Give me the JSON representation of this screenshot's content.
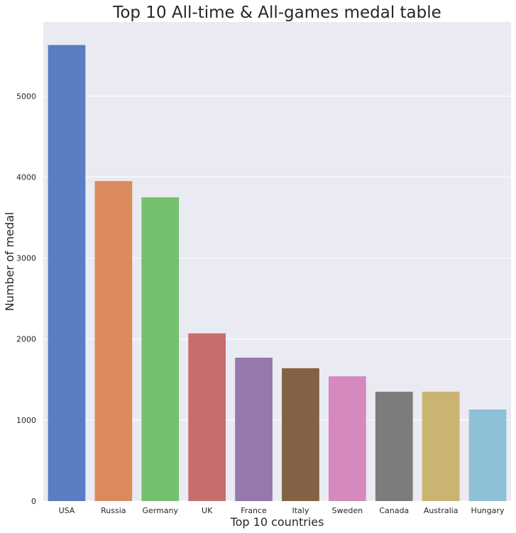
{
  "chart_data": {
    "type": "bar",
    "title": "Top 10 All-time & All-games medal table",
    "xlabel": "Top 10 countries",
    "ylabel": "Number of medal",
    "categories": [
      "USA",
      "Russia",
      "Germany",
      "UK",
      "France",
      "Italy",
      "Sweden",
      "Canada",
      "Australia",
      "Hungary"
    ],
    "values": [
      5630,
      3950,
      3750,
      2070,
      1770,
      1640,
      1540,
      1350,
      1350,
      1130
    ],
    "colors": [
      "#5a7dc3",
      "#dc8a5d",
      "#74c06e",
      "#c86d6d",
      "#9578ae",
      "#836145",
      "#d589bd",
      "#7c7c7c",
      "#c9b472",
      "#8fc1d6"
    ],
    "yticks": [
      0,
      1000,
      2000,
      3000,
      4000,
      5000
    ],
    "ylim": [
      0,
      5914
    ],
    "grid": true,
    "background": "#eaeaf2"
  }
}
